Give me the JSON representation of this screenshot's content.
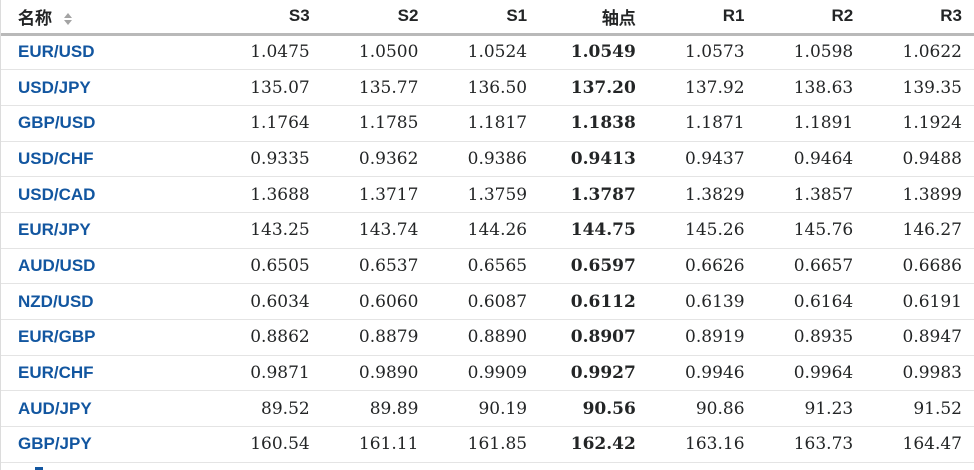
{
  "colors": {
    "link_blue": "#1256a0",
    "text_dark": "#232526",
    "header_border": "#b9b9b9",
    "row_border": "#e4e4e4"
  },
  "table": {
    "columns": [
      "名称",
      "S3",
      "S2",
      "S1",
      "轴点",
      "R1",
      "R2",
      "R3"
    ],
    "pivot_column_index": 3,
    "rows": [
      {
        "name": "EUR/USD",
        "values": [
          "1.0475",
          "1.0500",
          "1.0524",
          "1.0549",
          "1.0573",
          "1.0598",
          "1.0622"
        ]
      },
      {
        "name": "USD/JPY",
        "values": [
          "135.07",
          "135.77",
          "136.50",
          "137.20",
          "137.92",
          "138.63",
          "139.35"
        ]
      },
      {
        "name": "GBP/USD",
        "values": [
          "1.1764",
          "1.1785",
          "1.1817",
          "1.1838",
          "1.1871",
          "1.1891",
          "1.1924"
        ]
      },
      {
        "name": "USD/CHF",
        "values": [
          "0.9335",
          "0.9362",
          "0.9386",
          "0.9413",
          "0.9437",
          "0.9464",
          "0.9488"
        ]
      },
      {
        "name": "USD/CAD",
        "values": [
          "1.3688",
          "1.3717",
          "1.3759",
          "1.3787",
          "1.3829",
          "1.3857",
          "1.3899"
        ]
      },
      {
        "name": "EUR/JPY",
        "values": [
          "143.25",
          "143.74",
          "144.26",
          "144.75",
          "145.26",
          "145.76",
          "146.27"
        ]
      },
      {
        "name": "AUD/USD",
        "values": [
          "0.6505",
          "0.6537",
          "0.6565",
          "0.6597",
          "0.6626",
          "0.6657",
          "0.6686"
        ]
      },
      {
        "name": "NZD/USD",
        "values": [
          "0.6034",
          "0.6060",
          "0.6087",
          "0.6112",
          "0.6139",
          "0.6164",
          "0.6191"
        ]
      },
      {
        "name": "EUR/GBP",
        "values": [
          "0.8862",
          "0.8879",
          "0.8890",
          "0.8907",
          "0.8919",
          "0.8935",
          "0.8947"
        ]
      },
      {
        "name": "EUR/CHF",
        "values": [
          "0.9871",
          "0.9890",
          "0.9909",
          "0.9927",
          "0.9946",
          "0.9964",
          "0.9983"
        ]
      },
      {
        "name": "AUD/JPY",
        "values": [
          "89.52",
          "89.89",
          "90.19",
          "90.56",
          "90.86",
          "91.23",
          "91.52"
        ]
      },
      {
        "name": "GBP/JPY",
        "values": [
          "160.54",
          "161.11",
          "161.85",
          "162.42",
          "163.16",
          "163.73",
          "164.47"
        ]
      }
    ]
  }
}
